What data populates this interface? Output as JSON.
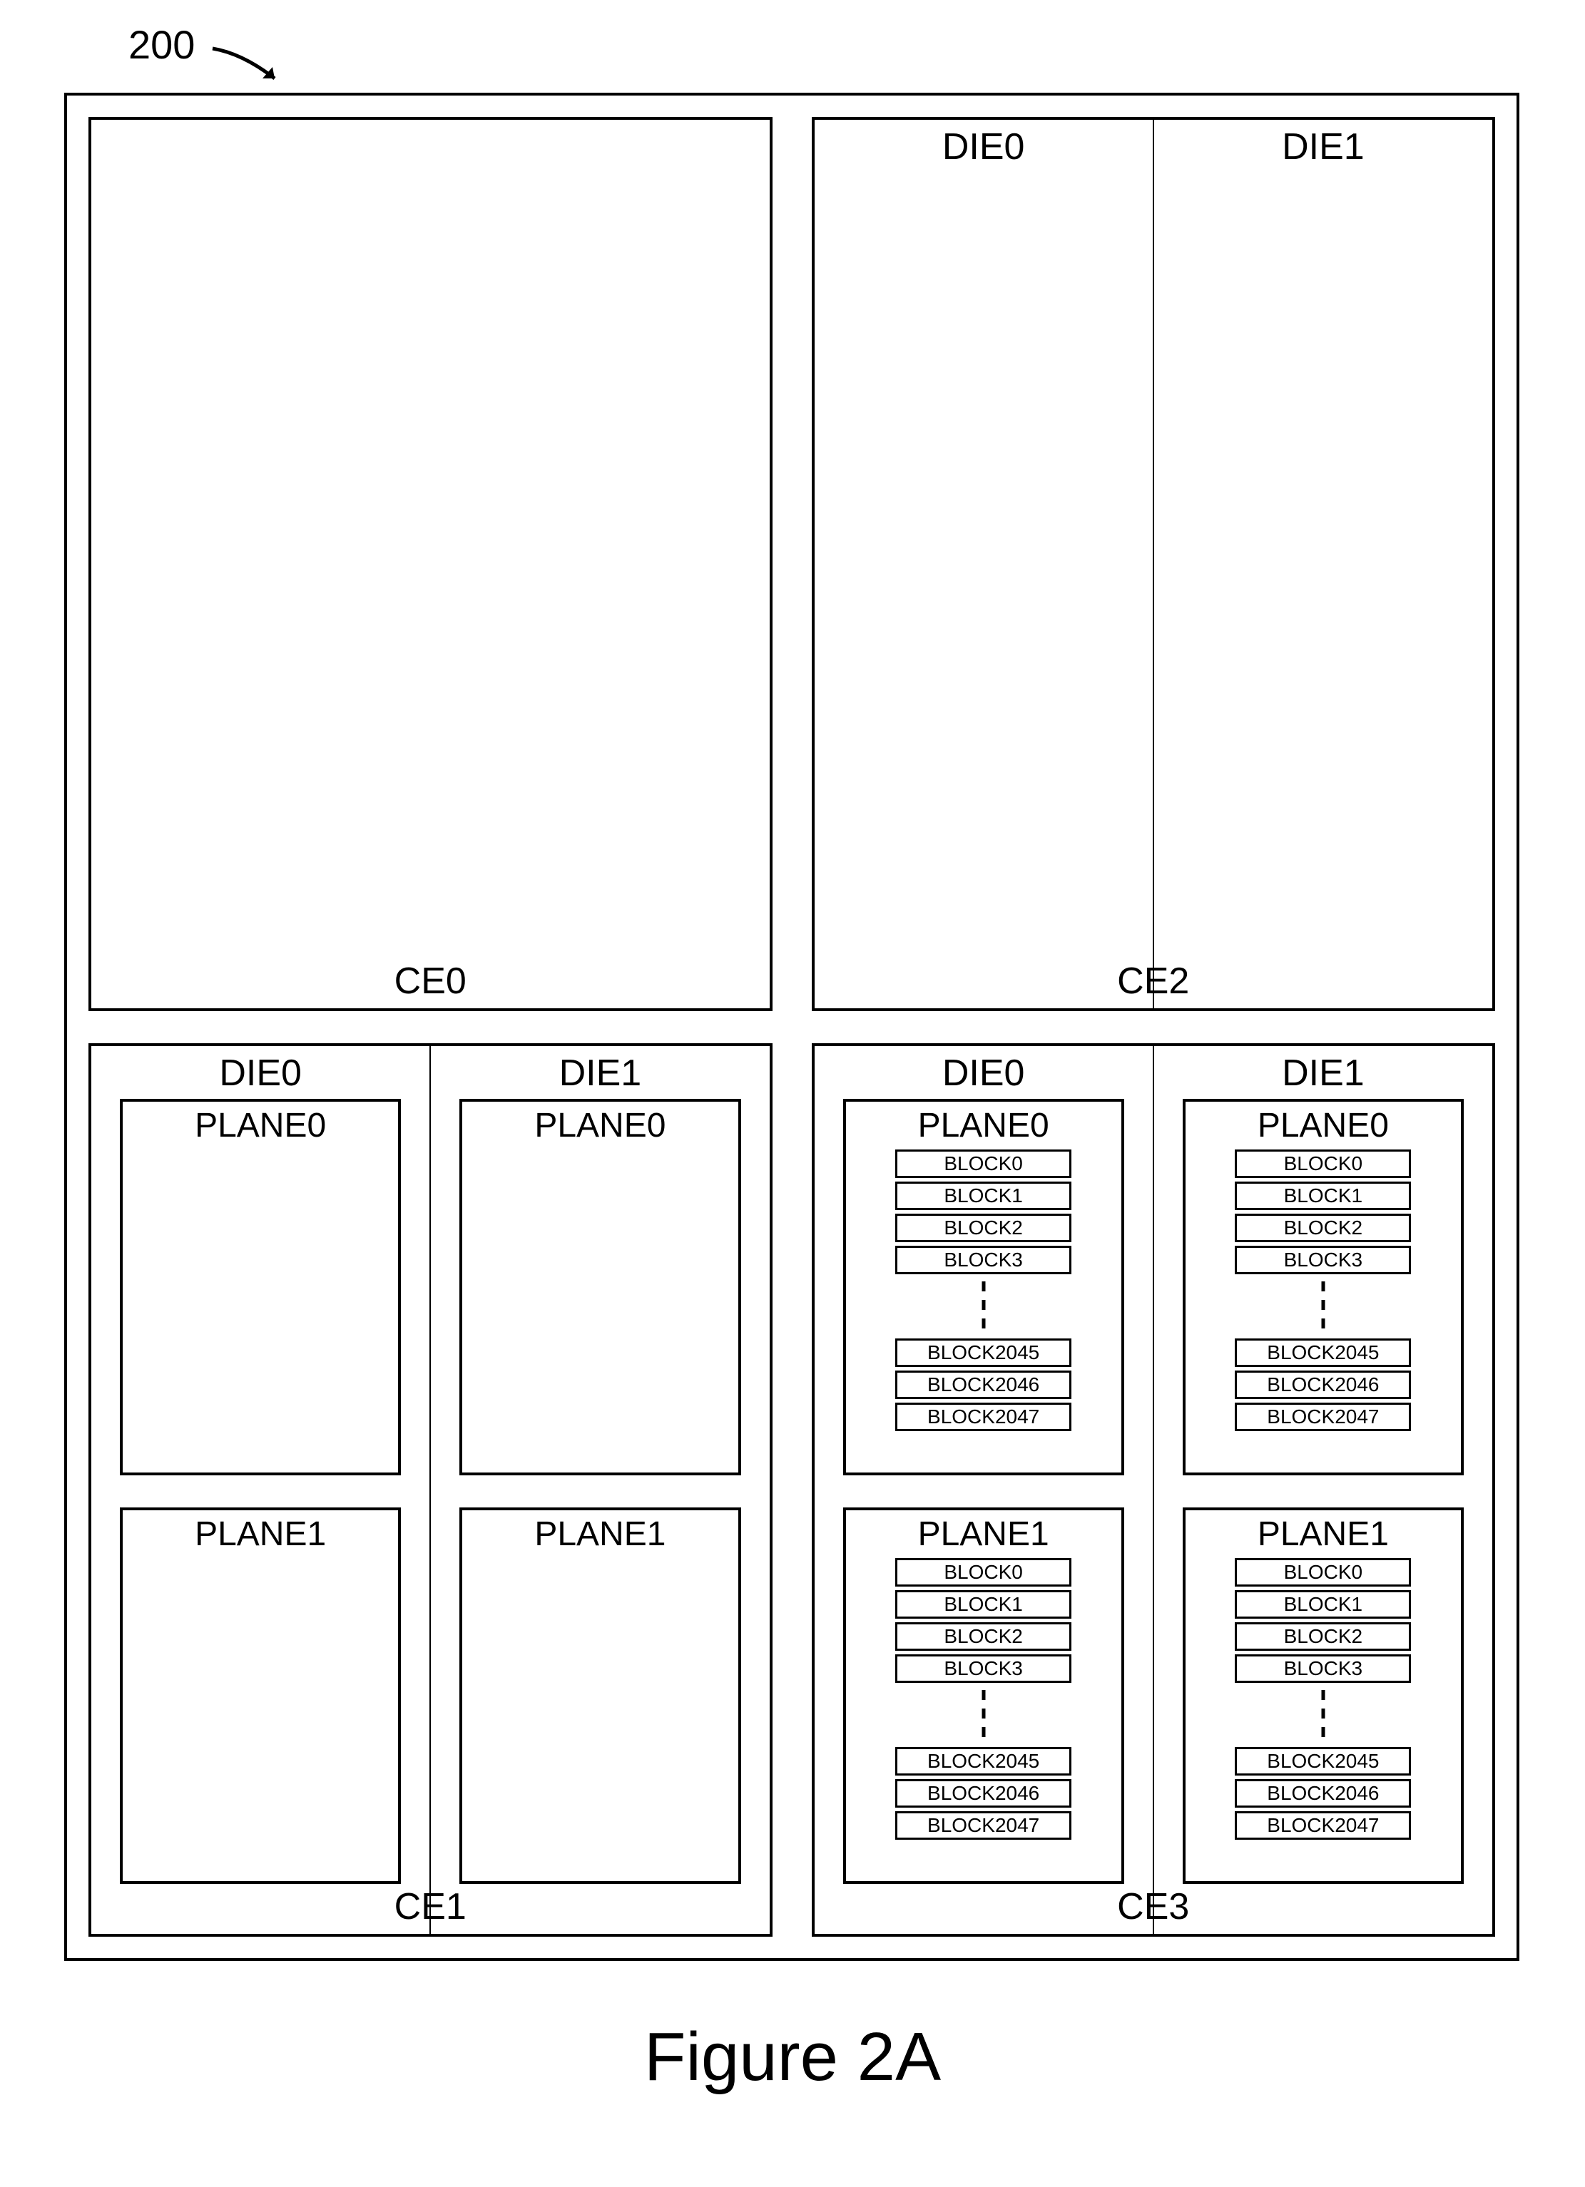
{
  "figure": {
    "reference_number": "200",
    "caption": "Figure 2A",
    "stroke_color": "#000000",
    "background_color": "#ffffff",
    "font_family": "Arial",
    "title_fontsize_pt": 72,
    "label_fontsize_pt": 40,
    "block_fontsize_pt": 21
  },
  "ce": [
    {
      "id": "CE0",
      "label": "CE0",
      "show_dies": false,
      "dies": []
    },
    {
      "id": "CE2",
      "label": "CE2",
      "show_dies": true,
      "dies": [
        {
          "label": "DIE0",
          "planes": []
        },
        {
          "label": "DIE1",
          "planes": []
        }
      ]
    },
    {
      "id": "CE1",
      "label": "CE1",
      "show_dies": true,
      "dies": [
        {
          "label": "DIE0",
          "planes": [
            {
              "label": "PLANE0",
              "blocks": []
            },
            {
              "label": "PLANE1",
              "blocks": []
            }
          ]
        },
        {
          "label": "DIE1",
          "planes": [
            {
              "label": "PLANE0",
              "blocks": []
            },
            {
              "label": "PLANE1",
              "blocks": []
            }
          ]
        }
      ]
    },
    {
      "id": "CE3",
      "label": "CE3",
      "show_dies": true,
      "dies": [
        {
          "label": "DIE0",
          "planes": [
            {
              "label": "PLANE0",
              "blocks": [
                "BLOCK0",
                "BLOCK1",
                "BLOCK2",
                "BLOCK3",
                "...",
                "BLOCK2045",
                "BLOCK2046",
                "BLOCK2047"
              ]
            },
            {
              "label": "PLANE1",
              "blocks": [
                "BLOCK0",
                "BLOCK1",
                "BLOCK2",
                "BLOCK3",
                "...",
                "BLOCK2045",
                "BLOCK2046",
                "BLOCK2047"
              ]
            }
          ]
        },
        {
          "label": "DIE1",
          "planes": [
            {
              "label": "PLANE0",
              "blocks": [
                "BLOCK0",
                "BLOCK1",
                "BLOCK2",
                "BLOCK3",
                "...",
                "BLOCK2045",
                "BLOCK2046",
                "BLOCK2047"
              ]
            },
            {
              "label": "PLANE1",
              "blocks": [
                "BLOCK0",
                "BLOCK1",
                "BLOCK2",
                "BLOCK3",
                "...",
                "BLOCK2045",
                "BLOCK2046",
                "BLOCK2047"
              ]
            }
          ]
        }
      ]
    }
  ]
}
